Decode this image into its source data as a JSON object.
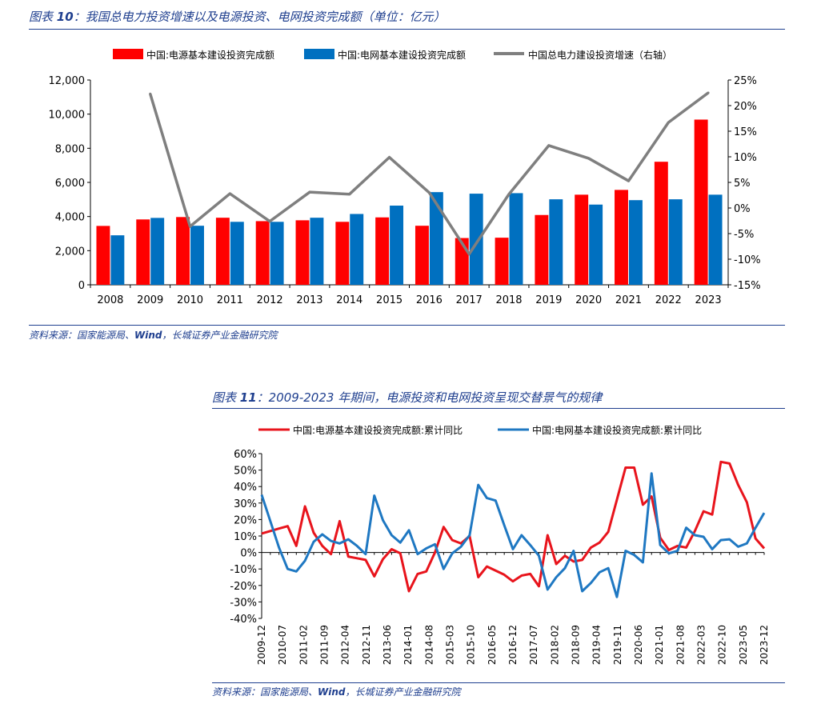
{
  "figure10": {
    "caption_prefix": "图表",
    "caption_number": "10",
    "caption_text": "：我国总电力投资增速以及电源投资、电网投资完成额（单位：亿元）",
    "source_prefix": "资料来源：国家能源局、",
    "source_wind": "Wind",
    "source_suffix": "，长城证券产业金融研究院",
    "colors": {
      "power": "#ff0000",
      "grid": "#0070c0",
      "growth": "#7f7f7f",
      "accent": "#1f3f8f"
    }
  },
  "figure11": {
    "caption_prefix": "图表",
    "caption_number": "11",
    "caption_text": "：2009-2023 年期间，电源投资和电网投资呈现交替景气的规律",
    "source_prefix": "资料来源：国家能源局、",
    "source_wind": "Wind",
    "source_suffix": "，长城证券产业金融研究院",
    "colors": {
      "power": "#e8141c",
      "grid": "#1f78c2"
    }
  },
  "chart_data": [
    {
      "type": "bar",
      "categories": [
        "2008",
        "2009",
        "2010",
        "2011",
        "2012",
        "2013",
        "2014",
        "2015",
        "2016",
        "2017",
        "2018",
        "2019",
        "2020",
        "2021",
        "2022",
        "2023"
      ],
      "series": [
        {
          "name": "中国:电源基本建设投资完成额",
          "type": "bar",
          "axis": "left",
          "values": [
            3450,
            3830,
            3970,
            3930,
            3730,
            3780,
            3690,
            3950,
            3460,
            2740,
            2760,
            4090,
            5280,
            5560,
            7210,
            9680
          ]
        },
        {
          "name": "中国:电网基本建设投资完成额",
          "type": "bar",
          "axis": "left",
          "values": [
            2900,
            3920,
            3460,
            3690,
            3690,
            3930,
            4150,
            4640,
            5430,
            5340,
            5370,
            5010,
            4700,
            4960,
            5010,
            5280
          ]
        },
        {
          "name": "中国总电力建设投资增速（右轴）",
          "type": "line",
          "axis": "right",
          "values": [
            null,
            22.3,
            -3.6,
            2.8,
            -2.6,
            3.1,
            2.7,
            9.9,
            3.0,
            -9.0,
            2.7,
            12.2,
            9.7,
            5.3,
            16.7,
            22.5
          ]
        }
      ],
      "y_left": {
        "min": 0,
        "max": 12000,
        "ticks": [
          "0",
          "2,000",
          "4,000",
          "6,000",
          "8,000",
          "10,000",
          "12,000"
        ]
      },
      "y_right": {
        "min": -15,
        "max": 25,
        "ticks": [
          "-15%",
          "-10%",
          "-5%",
          "0%",
          "5%",
          "10%",
          "15%",
          "20%",
          "25%"
        ]
      },
      "legend_position": "top",
      "grid": false
    },
    {
      "type": "line",
      "x_ticks": [
        "2009-12",
        "2010-07",
        "2011-02",
        "2011-09",
        "2012-04",
        "2012-11",
        "2013-06",
        "2014-01",
        "2014-08",
        "2015-03",
        "2015-10",
        "2016-05",
        "2016-12",
        "2017-07",
        "2018-02",
        "2018-09",
        "2019-04",
        "2019-11",
        "2020-06",
        "2021-01",
        "2021-08",
        "2022-03",
        "2022-10",
        "2023-05",
        "2023-12"
      ],
      "series": [
        {
          "name": "中国:电源基本建设投资完成额:累计同比",
          "values": [
            11.5,
            13.0,
            14.5,
            16.0,
            4.0,
            28.0,
            12.0,
            4.0,
            -1.0,
            19.0,
            -2.5,
            -3.5,
            -4.5,
            -14.5,
            -4.0,
            2.0,
            -0.5,
            -23.5,
            -13.0,
            -11.5,
            0.0,
            15.5,
            7.5,
            5.5,
            10.0,
            -15.0,
            -8.5,
            -11.0,
            -13.5,
            -17.5,
            -14.0,
            -13.0,
            -20.5,
            10.5,
            -7.0,
            -2.0,
            -5.5,
            -4.5,
            3.0,
            6.0,
            12.5,
            32.0,
            51.5,
            51.5,
            29.0,
            34.0,
            9.0,
            1.5,
            4.0,
            3.0,
            13.0,
            25.0,
            23.0,
            55.0,
            54.0,
            41.0,
            30.5,
            8.5,
            2.5
          ]
        },
        {
          "name": "中国:电网基本建设投资完成额:累计同比",
          "values": [
            35.0,
            19.0,
            3.0,
            -10.0,
            -11.5,
            -5.0,
            6.5,
            11.0,
            7.0,
            5.5,
            8.0,
            4.0,
            -1.0,
            34.5,
            19.5,
            10.5,
            6.0,
            13.5,
            -1.0,
            2.5,
            5.0,
            -10.0,
            -0.5,
            3.5,
            10.5,
            41.0,
            33.0,
            31.5,
            16.5,
            2.0,
            10.5,
            4.5,
            -2.0,
            -22.5,
            -15.0,
            -9.5,
            1.0,
            -23.5,
            -18.5,
            -12.0,
            -9.5,
            -27.0,
            1.0,
            -1.5,
            -6.0,
            48.0,
            4.5,
            -0.5,
            1.0,
            15.0,
            10.5,
            9.5,
            2.0,
            7.5,
            8.0,
            3.5,
            5.5,
            15.0,
            24.0
          ]
        }
      ],
      "y": {
        "min": -40,
        "max": 60,
        "ticks": [
          "-40%",
          "-30%",
          "-20%",
          "-10%",
          "0%",
          "10%",
          "20%",
          "30%",
          "40%",
          "50%",
          "60%"
        ]
      },
      "legend_position": "top",
      "grid": false
    }
  ]
}
